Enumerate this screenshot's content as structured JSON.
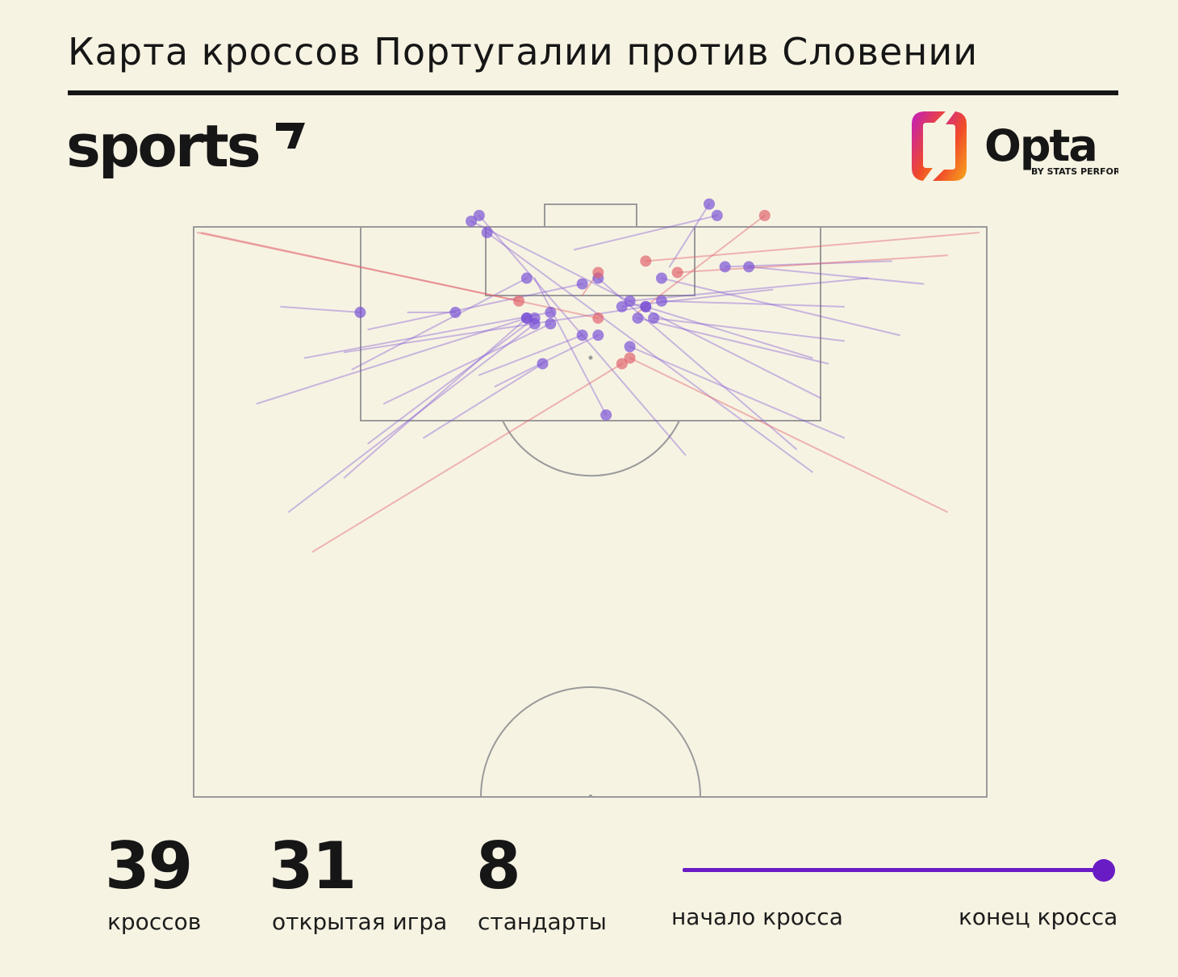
{
  "header": {
    "title": "Карта кроссов Португалии против Словении",
    "brand": "sports",
    "opta": {
      "word": "Opta",
      "sub": "BY STATS PERFORM"
    }
  },
  "stats": [
    {
      "value": "39",
      "label": "кроссов"
    },
    {
      "value": "31",
      "label": "открытая игра"
    },
    {
      "value": "8",
      "label": "стандарты"
    }
  ],
  "legend": {
    "start_label": "начало кросса",
    "end_label": "конец кросса",
    "color": "#6a1cc4"
  },
  "colors": {
    "open_play": "#7b52d6",
    "set_piece": "#e0646e",
    "background": "#f7f3e3",
    "pitch_lines": "#9a9a9a",
    "opta_gradient": [
      "#c01cc0",
      "#f04a2a",
      "#f8a81a"
    ]
  },
  "chart_data": {
    "type": "scatter",
    "description_units": "pitch coordinates: x 0-100 across width, y 0-100 from attacking goal line",
    "series": [
      {
        "name": "открытая игра",
        "color": "#7b52d6"
      },
      {
        "name": "стандарты",
        "color": "#e0646e"
      }
    ],
    "crosses": [
      {
        "type": "open",
        "start": [
          11,
          14
        ],
        "end": [
          21,
          15
        ]
      },
      {
        "type": "open",
        "start": [
          8,
          31
        ],
        "end": [
          42,
          16
        ]
      },
      {
        "type": "open",
        "start": [
          12,
          50
        ],
        "end": [
          43,
          17
        ]
      },
      {
        "type": "open",
        "start": [
          19,
          44
        ],
        "end": [
          42,
          16
        ]
      },
      {
        "type": "open",
        "start": [
          22,
          38
        ],
        "end": [
          43,
          16
        ]
      },
      {
        "type": "open",
        "start": [
          24,
          31
        ],
        "end": [
          45,
          17
        ]
      },
      {
        "type": "open",
        "start": [
          14,
          23
        ],
        "end": [
          45,
          15
        ]
      },
      {
        "type": "open",
        "start": [
          19,
          22
        ],
        "end": [
          57,
          14
        ]
      },
      {
        "type": "open",
        "start": [
          22,
          18
        ],
        "end": [
          49,
          10
        ]
      },
      {
        "type": "open",
        "start": [
          36,
          26
        ],
        "end": [
          49,
          19
        ]
      },
      {
        "type": "open",
        "start": [
          38,
          28
        ],
        "end": [
          51,
          19
        ]
      },
      {
        "type": "open",
        "start": [
          29,
          37
        ],
        "end": [
          44,
          24
        ]
      },
      {
        "type": "open",
        "start": [
          20,
          25
        ],
        "end": [
          42,
          9
        ]
      },
      {
        "type": "open",
        "start": [
          27,
          15
        ],
        "end": [
          33,
          15
        ]
      },
      {
        "type": "open",
        "start": [
          78,
          23
        ],
        "end": [
          57,
          14
        ]
      },
      {
        "type": "open",
        "start": [
          80,
          24
        ],
        "end": [
          56,
          16
        ]
      },
      {
        "type": "open",
        "start": [
          85,
          9
        ],
        "end": [
          55,
          13
        ]
      },
      {
        "type": "open",
        "start": [
          82,
          14
        ],
        "end": [
          59,
          13
        ]
      },
      {
        "type": "open",
        "start": [
          82,
          20
        ],
        "end": [
          58,
          16
        ]
      },
      {
        "type": "open",
        "start": [
          73,
          11
        ],
        "end": [
          54,
          14
        ]
      },
      {
        "type": "open",
        "start": [
          82,
          37
        ],
        "end": [
          55,
          21
        ]
      },
      {
        "type": "open",
        "start": [
          76,
          39
        ],
        "end": [
          51,
          9
        ]
      },
      {
        "type": "open",
        "start": [
          78,
          43
        ],
        "end": [
          37,
          1
        ]
      },
      {
        "type": "open",
        "start": [
          79,
          30
        ],
        "end": [
          35,
          -1
        ]
      },
      {
        "type": "open",
        "start": [
          62,
          40
        ],
        "end": [
          36,
          -2
        ]
      },
      {
        "type": "open",
        "start": [
          89,
          19
        ],
        "end": [
          59,
          9
        ]
      },
      {
        "type": "open",
        "start": [
          92,
          10
        ],
        "end": [
          70,
          7
        ]
      },
      {
        "type": "open",
        "start": [
          88,
          6
        ],
        "end": [
          67,
          7
        ]
      },
      {
        "type": "open",
        "start": [
          60,
          7
        ],
        "end": [
          65,
          -4
        ]
      },
      {
        "type": "open",
        "start": [
          48,
          4
        ],
        "end": [
          66,
          -2
        ]
      },
      {
        "type": "open",
        "start": [
          43,
          9
        ],
        "end": [
          52,
          33
        ]
      },
      {
        "type": "set",
        "start": [
          0.5,
          1
        ],
        "end": [
          41,
          13
        ]
      },
      {
        "type": "set",
        "start": [
          1,
          1
        ],
        "end": [
          51,
          16
        ]
      },
      {
        "type": "set",
        "start": [
          99,
          1
        ],
        "end": [
          57,
          6
        ]
      },
      {
        "type": "set",
        "start": [
          95,
          5
        ],
        "end": [
          61,
          8
        ]
      },
      {
        "type": "set",
        "start": [
          15,
          57
        ],
        "end": [
          54,
          24
        ]
      },
      {
        "type": "set",
        "start": [
          95,
          50
        ],
        "end": [
          55,
          23
        ]
      },
      {
        "type": "set",
        "start": [
          56,
          15
        ],
        "end": [
          72,
          -2
        ]
      },
      {
        "type": "set",
        "start": [
          49,
          12
        ],
        "end": [
          51,
          8
        ]
      }
    ]
  }
}
